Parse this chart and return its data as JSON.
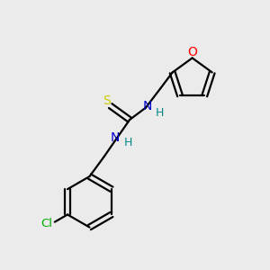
{
  "background_color": "#ebebeb",
  "bond_color": "#000000",
  "S_color": "#cccc00",
  "N_color": "#0000cc",
  "O_color": "#ff0000",
  "Cl_color": "#00aa00",
  "H_color": "#008888",
  "figsize": [
    3.0,
    3.0
  ],
  "dpi": 100,
  "xlim": [
    0,
    10
  ],
  "ylim": [
    0,
    10
  ]
}
